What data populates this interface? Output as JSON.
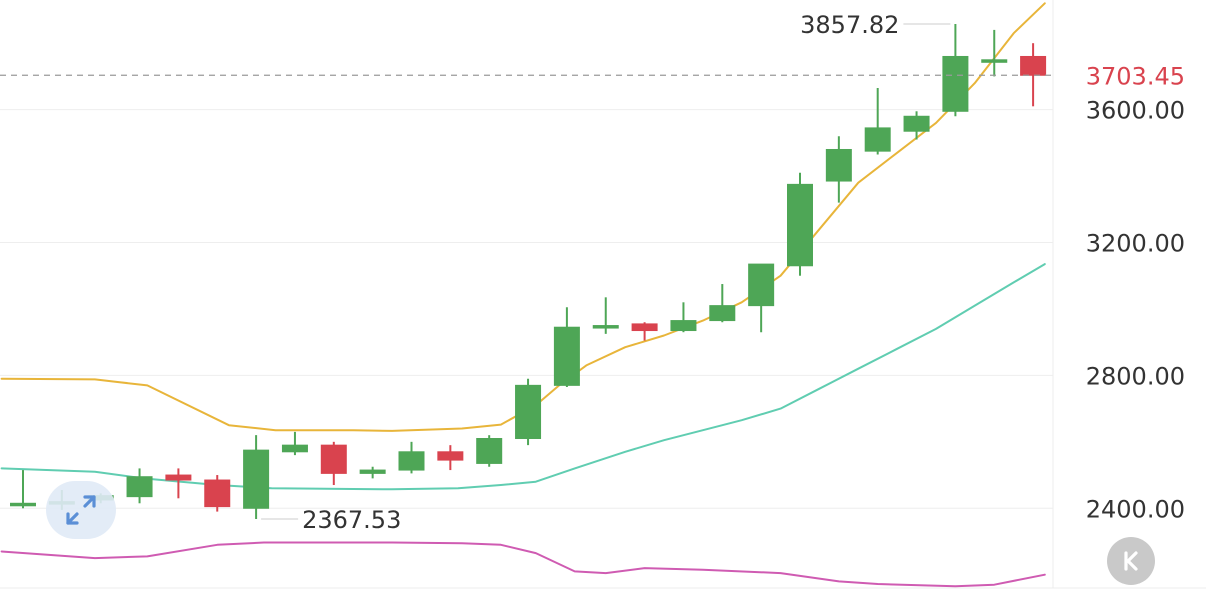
{
  "chart_data": {
    "type": "candlestick",
    "ylim": [
      2160,
      3930
    ],
    "y_ticks": [
      "2400.00",
      "2800.00",
      "3200.00",
      "3600.00"
    ],
    "y_tick_values": [
      2400,
      2800,
      3200,
      3600
    ],
    "current_price": {
      "label": "3703.45",
      "value": 3703.45,
      "color": "#d9434e"
    },
    "annotations": [
      {
        "label": "3857.82",
        "value": 3857.82,
        "index": 24
      },
      {
        "label": "2367.53",
        "value": 2367.53,
        "index": 6
      }
    ],
    "candles": [
      {
        "o": 2415,
        "c": 2415,
        "h": 2515,
        "l": 2400
      },
      {
        "o": 2420,
        "c": 2420,
        "h": 2455,
        "l": 2395
      },
      {
        "o": 2425,
        "c": 2438,
        "h": 2445,
        "l": 2415
      },
      {
        "o": 2435,
        "c": 2495,
        "h": 2520,
        "l": 2415
      },
      {
        "o": 2500,
        "c": 2485,
        "h": 2520,
        "l": 2430
      },
      {
        "o": 2485,
        "c": 2405,
        "h": 2500,
        "l": 2390
      },
      {
        "o": 2400,
        "c": 2575,
        "h": 2620,
        "l": 2367.53
      },
      {
        "o": 2570,
        "c": 2590,
        "h": 2630,
        "l": 2560
      },
      {
        "o": 2590,
        "c": 2505,
        "h": 2600,
        "l": 2470
      },
      {
        "o": 2505,
        "c": 2515,
        "h": 2525,
        "l": 2490
      },
      {
        "o": 2515,
        "c": 2570,
        "h": 2600,
        "l": 2505
      },
      {
        "o": 2570,
        "c": 2545,
        "h": 2590,
        "l": 2515
      },
      {
        "o": 2535,
        "c": 2610,
        "h": 2620,
        "l": 2525
      },
      {
        "o": 2610,
        "c": 2770,
        "h": 2790,
        "l": 2590
      },
      {
        "o": 2770,
        "c": 2945,
        "h": 3005,
        "l": 2765
      },
      {
        "o": 2950,
        "c": 2950,
        "h": 3035,
        "l": 2925
      },
      {
        "o": 2955,
        "c": 2935,
        "h": 2960,
        "l": 2905
      },
      {
        "o": 2935,
        "c": 2965,
        "h": 3020,
        "l": 2930
      },
      {
        "o": 2965,
        "c": 3010,
        "h": 3075,
        "l": 2960
      },
      {
        "o": 3010,
        "c": 3135,
        "h": 3135,
        "l": 2930
      },
      {
        "o": 3130,
        "c": 3375,
        "h": 3410,
        "l": 3100
      },
      {
        "o": 3385,
        "c": 3480,
        "h": 3520,
        "l": 3320
      },
      {
        "o": 3475,
        "c": 3545,
        "h": 3665,
        "l": 3465
      },
      {
        "o": 3535,
        "c": 3580,
        "h": 3595,
        "l": 3510
      },
      {
        "o": 3595,
        "c": 3760,
        "h": 3857.82,
        "l": 3580
      },
      {
        "o": 3750,
        "c": 3750,
        "h": 3840,
        "l": 3700
      },
      {
        "o": 3760,
        "c": 3703.45,
        "h": 3800,
        "l": 3610
      }
    ],
    "ma_lines": [
      {
        "color": "#e8b53a",
        "points": [
          [
            -0.55,
            2790
          ],
          [
            1.85,
            2788
          ],
          [
            3.2,
            2770
          ],
          [
            5.3,
            2650
          ],
          [
            6.5,
            2635
          ],
          [
            8.5,
            2635
          ],
          [
            9.5,
            2633
          ],
          [
            11.3,
            2640
          ],
          [
            12.3,
            2652
          ],
          [
            13.2,
            2710
          ],
          [
            13.8,
            2770
          ],
          [
            14.5,
            2830
          ],
          [
            15.5,
            2885
          ],
          [
            16.5,
            2920
          ],
          [
            17.5,
            2965
          ],
          [
            18.5,
            3020
          ],
          [
            19.5,
            3100
          ],
          [
            20.5,
            3240
          ],
          [
            21.5,
            3380
          ],
          [
            22.5,
            3470
          ],
          [
            23.5,
            3560
          ],
          [
            24.5,
            3680
          ],
          [
            25.5,
            3830
          ],
          [
            26.3,
            3920
          ]
        ]
      },
      {
        "color": "#60cdb1",
        "points": [
          [
            -0.55,
            2520
          ],
          [
            1.85,
            2510
          ],
          [
            3.1,
            2490
          ],
          [
            5.0,
            2470
          ],
          [
            6.4,
            2460
          ],
          [
            8.5,
            2458
          ],
          [
            9.5,
            2457
          ],
          [
            11.2,
            2460
          ],
          [
            12.3,
            2470
          ],
          [
            13.2,
            2480
          ],
          [
            14.2,
            2520
          ],
          [
            15.5,
            2570
          ],
          [
            16.5,
            2605
          ],
          [
            17.5,
            2635
          ],
          [
            18.5,
            2665
          ],
          [
            19.5,
            2700
          ],
          [
            20.5,
            2760
          ],
          [
            21.5,
            2820
          ],
          [
            22.5,
            2880
          ],
          [
            23.5,
            2940
          ],
          [
            24.5,
            3010
          ],
          [
            25.5,
            3080
          ],
          [
            26.3,
            3135
          ]
        ]
      },
      {
        "color": "#cf5bb2",
        "points": [
          [
            -0.55,
            2270
          ],
          [
            1.85,
            2250
          ],
          [
            3.2,
            2255
          ],
          [
            5.0,
            2290
          ],
          [
            6.2,
            2297
          ],
          [
            9.5,
            2297
          ],
          [
            11.3,
            2295
          ],
          [
            12.3,
            2290
          ],
          [
            13.2,
            2265
          ],
          [
            14.2,
            2210
          ],
          [
            15.0,
            2205
          ],
          [
            16.0,
            2220
          ],
          [
            17.5,
            2215
          ],
          [
            19.5,
            2205
          ],
          [
            21.0,
            2180
          ],
          [
            22.0,
            2172
          ],
          [
            24.0,
            2165
          ],
          [
            25.0,
            2170
          ],
          [
            26.3,
            2200
          ]
        ]
      }
    ]
  }
}
